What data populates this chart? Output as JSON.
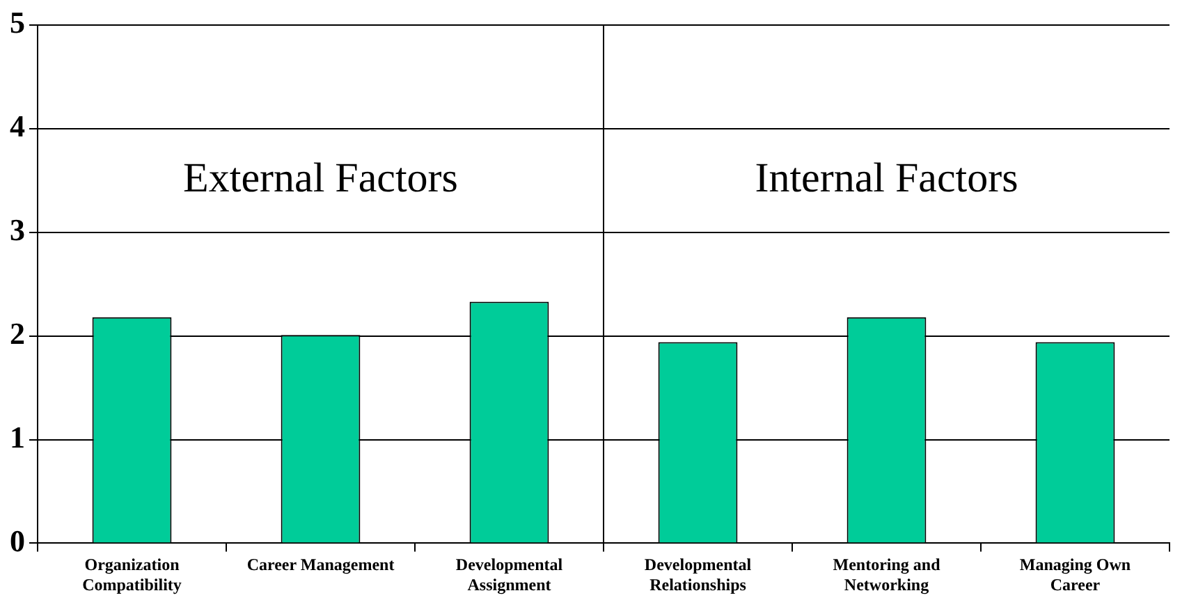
{
  "chart_data": {
    "type": "bar",
    "categories": [
      "Organization Compatibility",
      "Career Management",
      "Developmental Assignment",
      "Developmental Relationships",
      "Mentoring and Networking",
      "Managing Own Career"
    ],
    "values": [
      2.18,
      2.01,
      2.33,
      1.94,
      2.18,
      1.94
    ],
    "color": "#00cc99",
    "ylim": [
      0,
      5
    ],
    "yticks": [
      0,
      1,
      2,
      3,
      4,
      5
    ],
    "grid": "y",
    "legend": false,
    "annotations": [
      "External Factors",
      "Internal Factors"
    ]
  }
}
